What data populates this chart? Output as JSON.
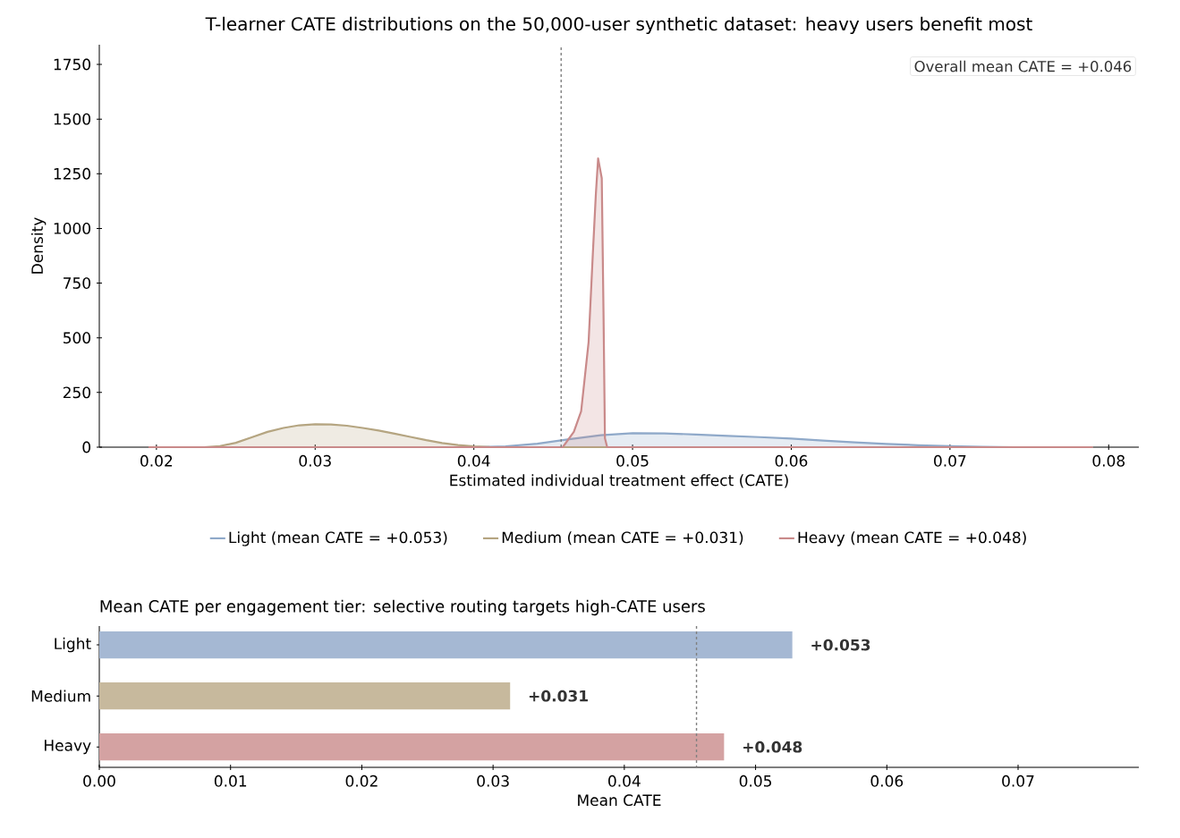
{
  "chart_data": [
    {
      "type": "area",
      "title": "T-learner CATE distributions on the 50,000-user synthetic dataset: heavy users benefit most",
      "xlabel": "Estimated individual treatment effect (CATE)",
      "ylabel": "Density",
      "xlim": [
        0.0164,
        0.0819
      ],
      "ylim": [
        0,
        1840
      ],
      "xticks": [
        0.02,
        0.03,
        0.04,
        0.05,
        0.06,
        0.07,
        0.08
      ],
      "yticks": [
        0,
        250,
        500,
        750,
        1000,
        1250,
        1500,
        1750
      ],
      "legend": "bottom",
      "annotations": [
        "Overall mean CATE = +0.046"
      ],
      "ref_lines": [
        {
          "axis": "x",
          "value": 0.0455,
          "color": "#808080",
          "line_style": "dashed"
        }
      ],
      "series": [
        {
          "name": "Light (mean CATE = +0.053)",
          "color": "#8fa9c9",
          "x": [
            0.0195,
            0.04,
            0.042,
            0.044,
            0.046,
            0.048,
            0.05,
            0.052,
            0.054,
            0.056,
            0.058,
            0.06,
            0.062,
            0.064,
            0.066,
            0.068,
            0.07,
            0.072,
            0.074,
            0.079
          ],
          "values": [
            0,
            0,
            4,
            16,
            36,
            55,
            64,
            63,
            58,
            52,
            46,
            39,
            30,
            22,
            15,
            9,
            5,
            2,
            0,
            0
          ]
        },
        {
          "name": "Medium (mean CATE = +0.031)",
          "color": "#b5a581",
          "x": [
            0.0195,
            0.023,
            0.024,
            0.025,
            0.026,
            0.027,
            0.028,
            0.029,
            0.03,
            0.031,
            0.032,
            0.033,
            0.034,
            0.035,
            0.036,
            0.037,
            0.038,
            0.039,
            0.04,
            0.041,
            0.042,
            0.079
          ],
          "values": [
            0,
            0,
            5,
            20,
            45,
            70,
            88,
            100,
            105,
            104,
            98,
            88,
            76,
            62,
            47,
            32,
            19,
            10,
            4,
            1,
            0,
            0
          ]
        },
        {
          "name": "Heavy (mean CATE = +0.048)",
          "color": "#c98a8a",
          "x": [
            0.0195,
            0.0456,
            0.0463,
            0.04676,
            0.04723,
            0.0475,
            0.04769,
            0.04783,
            0.04806,
            0.04817,
            0.04826,
            0.0484,
            0.079
          ],
          "values": [
            0,
            0,
            70,
            164,
            480,
            889,
            1160,
            1320,
            1230,
            615,
            41,
            0,
            0
          ]
        }
      ]
    },
    {
      "type": "bar",
      "orientation": "horizontal",
      "title": "Mean CATE per engagement tier: selective routing targets high-CATE users",
      "xlabel": "Mean CATE",
      "categories": [
        "Light",
        "Medium",
        "Heavy"
      ],
      "values": [
        0.0528,
        0.0313,
        0.0476
      ],
      "colors": [
        "#a5b8d3",
        "#c7b99d",
        "#d4a2a2"
      ],
      "value_labels": [
        "+0.053",
        "+0.031",
        "+0.048"
      ],
      "xlim": [
        0,
        0.0792
      ],
      "xticks": [
        {
          "value": 0,
          "label": "0.00"
        },
        0.01,
        0.02,
        0.03,
        0.04,
        0.05,
        0.06,
        0.07
      ],
      "ref_lines": [
        {
          "axis": "x",
          "value": 0.0455,
          "color": "#808080",
          "line_style": "dashed"
        }
      ]
    }
  ]
}
